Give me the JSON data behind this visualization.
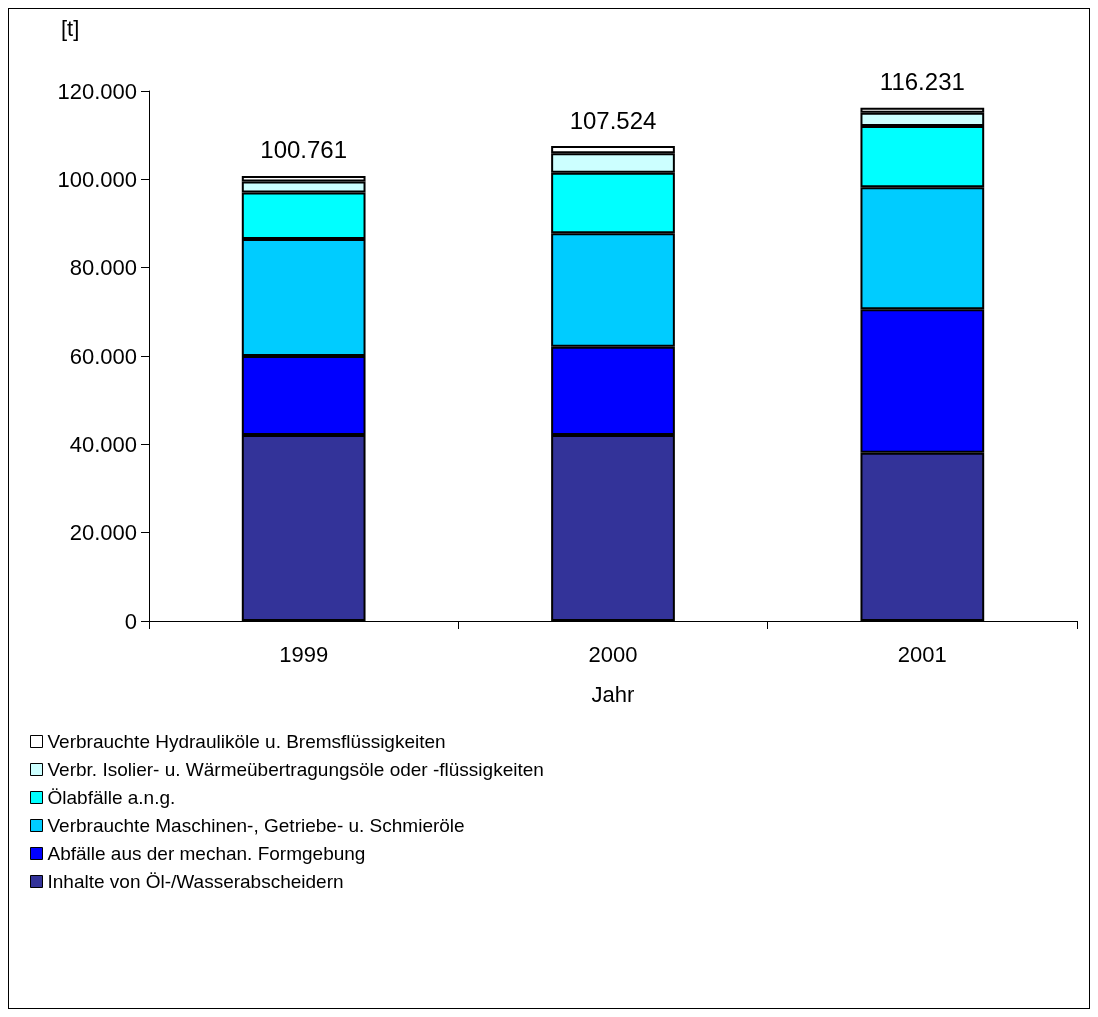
{
  "chart_data": {
    "type": "bar",
    "stacked": true,
    "xlabel": "Jahr",
    "ylabel": "[t]",
    "categories": [
      "1999",
      "2000",
      "2001"
    ],
    "series": [
      {
        "name": "Inhalte von Öl-/Wasserabscheidern",
        "color": "#333399",
        "values": [
          42100,
          42100,
          38100
        ]
      },
      {
        "name": "Abfälle aus der mechan. Formgebung",
        "color": "#0000ff",
        "values": [
          17900,
          20000,
          32500
        ]
      },
      {
        "name": "Verbrauchte Maschinen-, Getriebe- u. Schmieröle",
        "color": "#00ccff",
        "values": [
          26500,
          25700,
          27600
        ]
      },
      {
        "name": "Ölabfälle a.n.g.",
        "color": "#00ffff",
        "values": [
          10500,
          13700,
          13900
        ]
      },
      {
        "name": "Verbr. Isolier- u. Wärmeübertragungsöle oder -flüssigkeiten",
        "color": "#ccffff",
        "values": [
          2500,
          4400,
          3000
        ]
      },
      {
        "name": "Verbrauchte Hydrauliköle u. Bremsflüssigkeiten",
        "color": "#ffffff",
        "values": [
          1261,
          1624,
          1131
        ]
      }
    ],
    "totals": [
      "100.761",
      "107.524",
      "116.231"
    ],
    "ylim": [
      0,
      120000
    ],
    "yticks": [
      0,
      {
        "value": 20000,
        "label": "20.000"
      },
      {
        "value": 40000,
        "label": "40.000"
      },
      {
        "value": 60000,
        "label": "60.000"
      },
      {
        "value": 80000,
        "label": "80.000"
      },
      {
        "value": 100000,
        "label": "100.000"
      },
      {
        "value": 120000,
        "label": "120.000"
      }
    ],
    "grid": false,
    "legend": "bottom"
  }
}
